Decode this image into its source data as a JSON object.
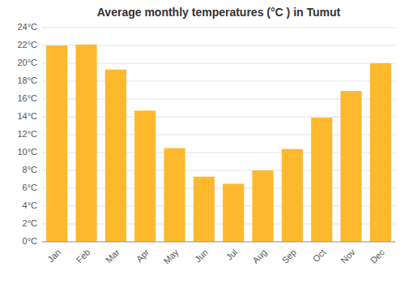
{
  "chart_data": {
    "type": "bar",
    "title": "Average monthly temperatures (°C ) in Tumut",
    "categories": [
      "Jan",
      "Feb",
      "Mar",
      "Apr",
      "May",
      "Jun",
      "Jul",
      "Aug",
      "Sep",
      "Oct",
      "Nov",
      "Dec"
    ],
    "values": [
      22.0,
      22.1,
      19.3,
      14.7,
      10.5,
      7.3,
      6.5,
      8.0,
      10.4,
      13.9,
      16.9,
      20.0
    ],
    "color": "#FDB92E",
    "ylim": [
      0,
      24
    ],
    "yticks": [
      {
        "value": 0,
        "label": "0°C"
      },
      {
        "value": 2,
        "label": "2°C"
      },
      {
        "value": 4,
        "label": "4°C"
      },
      {
        "value": 6,
        "label": "6°C"
      },
      {
        "value": 8,
        "label": "8°C"
      },
      {
        "value": 10,
        "label": "10°C"
      },
      {
        "value": 12,
        "label": "12°C"
      },
      {
        "value": 14,
        "label": "14°C"
      },
      {
        "value": 16,
        "label": "16°C"
      },
      {
        "value": 18,
        "label": "18°C"
      },
      {
        "value": 20,
        "label": "20°C"
      },
      {
        "value": 22,
        "label": "22°C"
      },
      {
        "value": 24,
        "label": "24°C"
      }
    ],
    "grid": true
  }
}
